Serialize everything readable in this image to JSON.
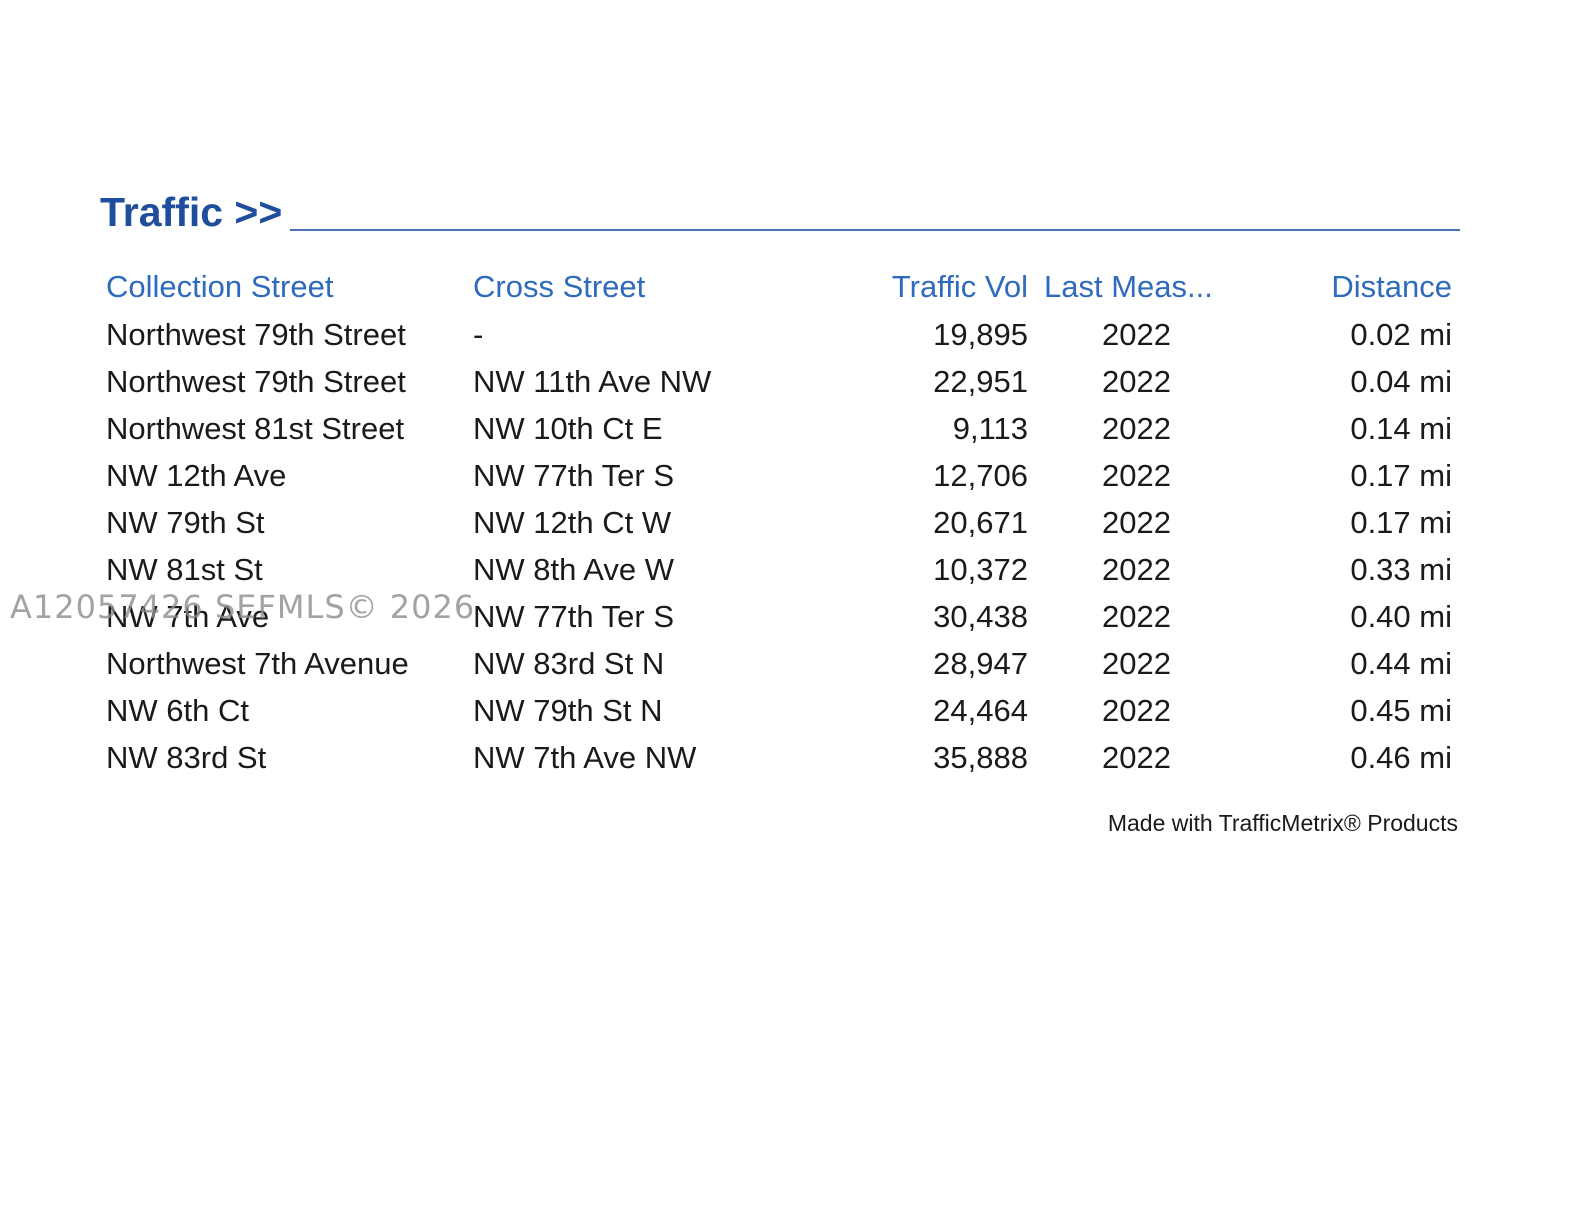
{
  "section": {
    "title": "Traffic >>"
  },
  "table": {
    "headers": {
      "collection_street": "Collection Street",
      "cross_street": "Cross Street",
      "traffic_vol": "Traffic Vol",
      "last_measured": "Last Meas...",
      "distance": "Distance"
    },
    "rows": [
      {
        "collection_street": "Northwest 79th Street",
        "cross_street": "-",
        "traffic_vol": "19,895",
        "last_measured": "2022",
        "distance": "0.02 mi"
      },
      {
        "collection_street": "Northwest 79th Street",
        "cross_street": "NW 11th Ave NW",
        "traffic_vol": "22,951",
        "last_measured": "2022",
        "distance": "0.04 mi"
      },
      {
        "collection_street": "Northwest 81st Street",
        "cross_street": "NW 10th Ct E",
        "traffic_vol": "9,113",
        "last_measured": "2022",
        "distance": "0.14 mi"
      },
      {
        "collection_street": "NW 12th Ave",
        "cross_street": "NW 77th Ter S",
        "traffic_vol": "12,706",
        "last_measured": "2022",
        "distance": "0.17 mi"
      },
      {
        "collection_street": "NW 79th St",
        "cross_street": "NW 12th Ct W",
        "traffic_vol": "20,671",
        "last_measured": "2022",
        "distance": "0.17 mi"
      },
      {
        "collection_street": "NW 81st St",
        "cross_street": "NW 8th Ave W",
        "traffic_vol": "10,372",
        "last_measured": "2022",
        "distance": "0.33 mi"
      },
      {
        "collection_street": "NW 7th Ave",
        "cross_street": "NW 77th Ter S",
        "traffic_vol": "30,438",
        "last_measured": "2022",
        "distance": "0.40 mi"
      },
      {
        "collection_street": "Northwest 7th Avenue",
        "cross_street": "NW 83rd St N",
        "traffic_vol": "28,947",
        "last_measured": "2022",
        "distance": "0.44 mi"
      },
      {
        "collection_street": "NW 6th Ct",
        "cross_street": "NW 79th St N",
        "traffic_vol": "24,464",
        "last_measured": "2022",
        "distance": "0.45 mi"
      },
      {
        "collection_street": "NW 83rd St",
        "cross_street": "NW 7th Ave NW",
        "traffic_vol": "35,888",
        "last_measured": "2022",
        "distance": "0.46 mi"
      }
    ]
  },
  "footer": {
    "credit": "Made with TrafficMetrix® Products"
  },
  "watermark": {
    "text": "A12057426 SEFMLS© 2026"
  },
  "colors": {
    "title": "#1f4e9c",
    "header_text": "#2f6bbd",
    "rule": "#4a70b8",
    "body_text": "#1a1a1a"
  }
}
